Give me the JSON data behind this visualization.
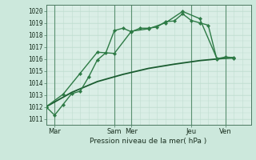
{
  "bg_color": "#cce8dc",
  "plot_bg": "#daeee6",
  "grid_color_major": "#a8c8b8",
  "grid_color_minor": "#c0ddd0",
  "line_color1": "#2d7a45",
  "line_color2": "#2d7a45",
  "line_color3": "#1a5c30",
  "ylabel_ticks": [
    1011,
    1012,
    1013,
    1014,
    1015,
    1016,
    1017,
    1018,
    1019,
    1020
  ],
  "ylim": [
    1010.5,
    1020.5
  ],
  "xlim": [
    0,
    24
  ],
  "xlabel": "Pression niveau de la mer( hPa )",
  "series1_x": [
    0,
    1,
    2,
    3,
    4,
    5,
    6,
    7,
    8,
    9,
    10,
    11,
    12,
    13,
    14,
    15,
    16,
    17,
    18,
    19,
    20,
    21,
    22
  ],
  "series1_y": [
    1012.0,
    1011.3,
    1012.2,
    1013.1,
    1013.3,
    1014.5,
    1015.9,
    1016.5,
    1018.35,
    1018.55,
    1018.25,
    1018.55,
    1018.55,
    1018.65,
    1019.1,
    1019.15,
    1019.75,
    1019.2,
    1019.0,
    1018.8,
    1016.0,
    1016.15,
    1016.1
  ],
  "series2_x": [
    0,
    2,
    4,
    6,
    8,
    10,
    12,
    14,
    16,
    18,
    20,
    22
  ],
  "series2_y": [
    1012.0,
    1013.05,
    1014.8,
    1016.55,
    1016.45,
    1018.3,
    1018.5,
    1019.0,
    1019.95,
    1019.35,
    1016.05,
    1016.05
  ],
  "series3_x": [
    0,
    3,
    6,
    9,
    12,
    15,
    18,
    21,
    22
  ],
  "series3_y": [
    1012.0,
    1013.2,
    1014.1,
    1014.7,
    1015.2,
    1015.55,
    1015.85,
    1016.05,
    1016.1
  ],
  "xtick_pos": [
    1,
    8,
    10,
    17,
    21
  ],
  "xtick_lab": [
    "Mar",
    "Sam",
    "Mer",
    "Jeu",
    "Ven"
  ],
  "vline_pos": [
    1,
    8,
    10,
    17,
    21
  ]
}
